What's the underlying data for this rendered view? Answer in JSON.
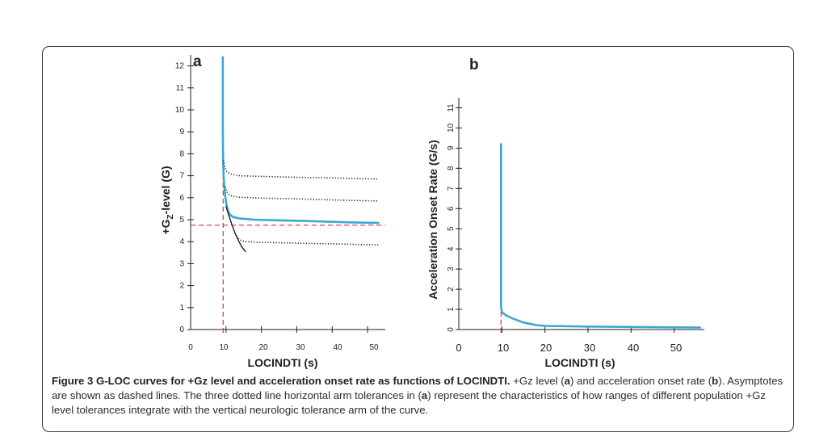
{
  "chart_data": [
    {
      "type": "line",
      "panel": "a",
      "xlabel": "LOCINDTI (s)",
      "ylabel_prefix": "+G",
      "ylabel_sub": "Z",
      "ylabel_suffix": "-level (G)",
      "xlim": [
        0,
        55
      ],
      "ylim": [
        0,
        12.5
      ],
      "x_ticks": [
        0,
        10,
        20,
        30,
        40,
        50
      ],
      "y_ticks": [
        0,
        1,
        2,
        3,
        4,
        5,
        6,
        7,
        8,
        9,
        10,
        11,
        12
      ],
      "series": [
        {
          "style": "solid-blue",
          "color": "#39a9cf",
          "x": [
            9.1,
            9.1,
            9.15,
            9.3,
            9.6,
            10.0,
            10.5,
            11.0,
            12.0,
            14.0,
            18.0,
            25.0,
            35.0,
            45.0,
            53.0
          ],
          "y": [
            12.4,
            9.0,
            8.0,
            7.0,
            6.3,
            5.8,
            5.45,
            5.25,
            5.12,
            5.05,
            5.0,
            4.97,
            4.93,
            4.88,
            4.85
          ]
        },
        {
          "style": "solid-black",
          "color": "#231f20",
          "x": [
            10.0,
            10.8,
            11.6,
            12.5,
            13.5,
            14.5,
            15.5
          ],
          "y": [
            5.6,
            5.2,
            4.8,
            4.4,
            4.05,
            3.75,
            3.55
          ]
        },
        {
          "style": "dotted",
          "color": "#231f20",
          "x": [
            9.2,
            9.6,
            10.2,
            11.0,
            12.0,
            14.0,
            20.0,
            30.0,
            40.0,
            53.0
          ],
          "y": [
            7.7,
            7.4,
            7.2,
            7.1,
            7.05,
            7.0,
            6.97,
            6.93,
            6.9,
            6.85
          ]
        },
        {
          "style": "dotted",
          "color": "#231f20",
          "x": [
            9.8,
            10.3,
            11.0,
            12.0,
            14.0,
            20.0,
            30.0,
            40.0,
            53.0
          ],
          "y": [
            6.5,
            6.25,
            6.12,
            6.06,
            6.02,
            5.98,
            5.95,
            5.9,
            5.85
          ]
        },
        {
          "style": "dotted",
          "color": "#231f20",
          "x": [
            13.0,
            13.8,
            15.0,
            17.0,
            20.0,
            30.0,
            40.0,
            53.0
          ],
          "y": [
            4.25,
            4.08,
            4.02,
            3.99,
            3.97,
            3.93,
            3.9,
            3.85
          ]
        }
      ],
      "asymptotes": {
        "vertical_x": 9.2,
        "horizontal_y": 4.75,
        "color": "#e0342c"
      }
    },
    {
      "type": "line",
      "panel": "b",
      "xlabel": "LOCINDTI (s)",
      "ylabel": "Acceleration Onset Rate (G/s)",
      "xlim": [
        0,
        57
      ],
      "ylim": [
        0,
        11.5
      ],
      "x_ticks": [
        0,
        10,
        20,
        30,
        40,
        50
      ],
      "y_ticks": [
        0,
        1,
        2,
        3,
        4,
        5,
        6,
        7,
        8,
        9,
        10,
        11
      ],
      "series": [
        {
          "style": "solid-blue",
          "color": "#39a9cf",
          "x": [
            9.8,
            9.8,
            9.9,
            10.2,
            11.0,
            12.5,
            15.0,
            18.0,
            20.0,
            30.0,
            40.0,
            50.0,
            56.0
          ],
          "y": [
            9.2,
            1.2,
            0.95,
            0.82,
            0.7,
            0.55,
            0.35,
            0.22,
            0.18,
            0.15,
            0.13,
            0.11,
            0.1
          ]
        }
      ],
      "asymptotes": {
        "vertical_x": 9.8,
        "color": "#e0342c"
      }
    }
  ],
  "caption": {
    "label": "Figure 3 G-LOC curves for +Gz level and acceleration onset rate as functions of LOCINDTI.",
    "t1": " +Gz level (",
    "a": "a",
    "t2": ") and acceleration onset rate (",
    "b": "b",
    "t3": "). Asymptotes are shown as dashed lines. The three dotted line horizontal arm tolerances in (",
    "a2": "a",
    "t4": ") represent the characteristics of how ranges of different population +Gz level tolerances integrate with the vertical neurologic tolerance arm of the curve."
  }
}
